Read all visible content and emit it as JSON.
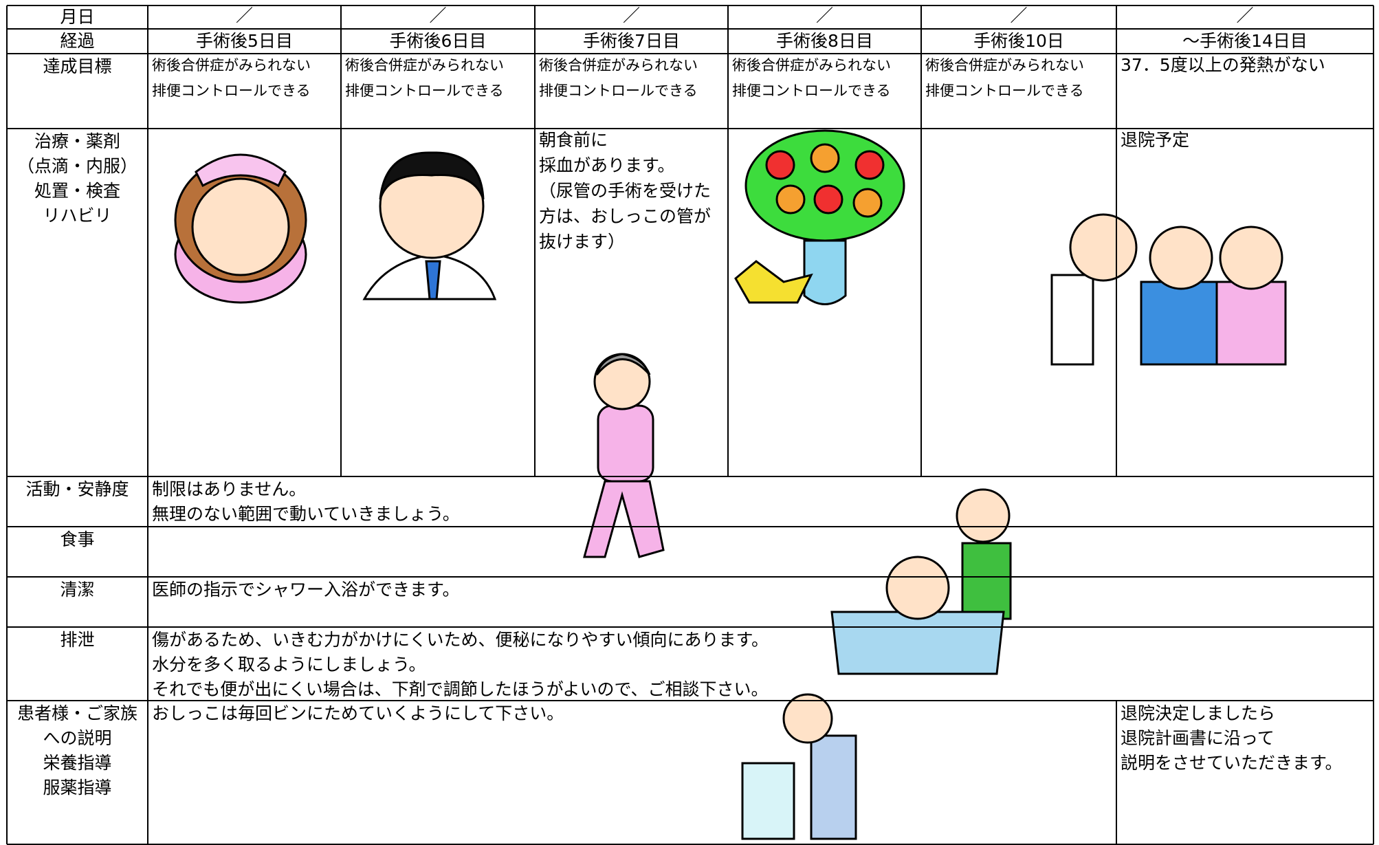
{
  "header": {
    "date_label": "月日",
    "dates": [
      "／",
      "／",
      "／",
      "／",
      "／",
      "／"
    ],
    "course_label": "経過",
    "days": [
      "手術後5日目",
      "手術後6日目",
      "手術後7日目",
      "手術後8日目",
      "手術後10日",
      "～手術後14日目"
    ]
  },
  "rows": [
    {
      "label": [
        "達成目標"
      ],
      "cells": [
        [
          "術後合併症がみられない",
          "排便コントロールできる"
        ],
        [
          "術後合併症がみられない",
          "排便コントロールできる"
        ],
        [
          "術後合併症がみられない",
          "排便コントロールできる"
        ],
        [
          "術後合併症がみられない",
          "排便コントロールできる"
        ],
        [
          "術後合併症がみられない",
          "排便コントロールできる"
        ],
        [
          "37．5度以上の発熱がない"
        ]
      ]
    },
    {
      "label": [
        "治療・薬剤",
        "（点滴・内服）",
        "処置・検査",
        "リハビリ"
      ],
      "cells": [
        [],
        [],
        [
          "朝食前に",
          "採血があります。",
          "（尿管の手術を受けた",
          "方は、おしっこの管が",
          "抜けます）"
        ],
        [],
        [],
        [
          "退院予定"
        ]
      ]
    },
    {
      "label": [
        "活動・安静度"
      ],
      "text": [
        "制限はありません。",
        "無理のない範囲で動いていきましょう。"
      ]
    },
    {
      "label": [
        "食事"
      ],
      "text": []
    },
    {
      "label": [
        "清潔"
      ],
      "text": [
        "医師の指示でシャワー入浴ができます。"
      ]
    },
    {
      "label": [
        "排泄"
      ],
      "text": [
        "傷があるため、いきむ力がかけにくいため、便秘になりやすい傾向にあります。",
        "水分を多く取るようにしましょう。",
        "それでも便が出にくい場合は、下剤で調節したほうがよいので、ご相談下さい。"
      ]
    },
    {
      "label": [
        "患者様・ご家族",
        "への説明",
        "栄養指導",
        "服薬指導"
      ],
      "text": [
        "おしっこは毎回ビンにためていくようにして下さい。"
      ],
      "last": [
        "退院決定しましたら",
        "退院計画書に沿って",
        "説明をさせていただきます。"
      ]
    }
  ]
}
